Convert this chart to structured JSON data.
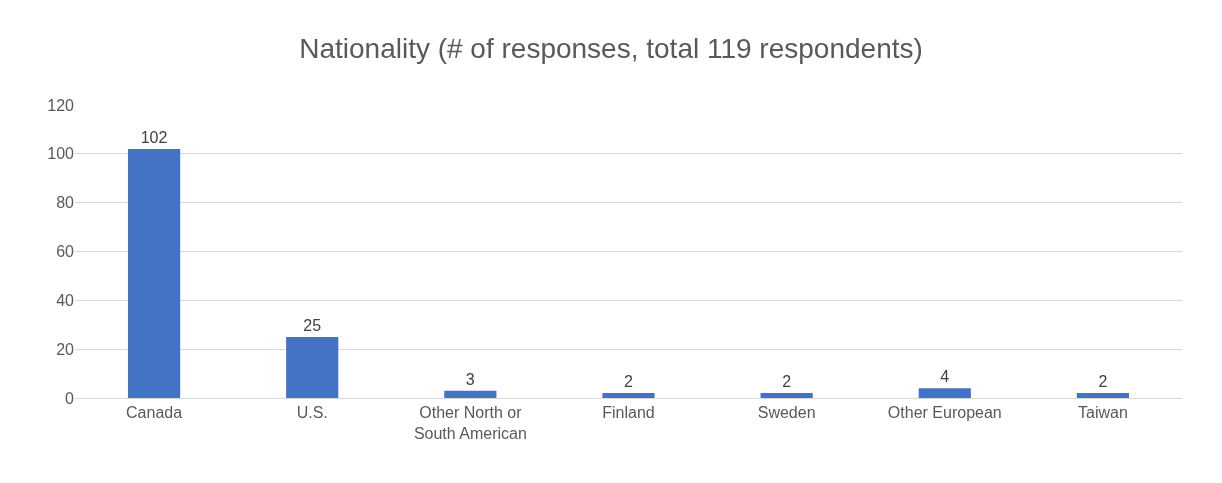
{
  "chart_data": {
    "type": "bar",
    "title": "Nationality (# of responses, total 119 respondents)",
    "categories": [
      "Canada",
      "U.S.",
      "Other North or South American",
      "Finland",
      "Sweden",
      "Other European",
      "Taiwan"
    ],
    "values": [
      102,
      25,
      3,
      2,
      2,
      4,
      2
    ],
    "color": "#4472c4",
    "ylim": [
      0,
      120
    ],
    "yticks": [
      0,
      20,
      40,
      60,
      80,
      100,
      120
    ],
    "grid": "y",
    "data_labels": true
  }
}
